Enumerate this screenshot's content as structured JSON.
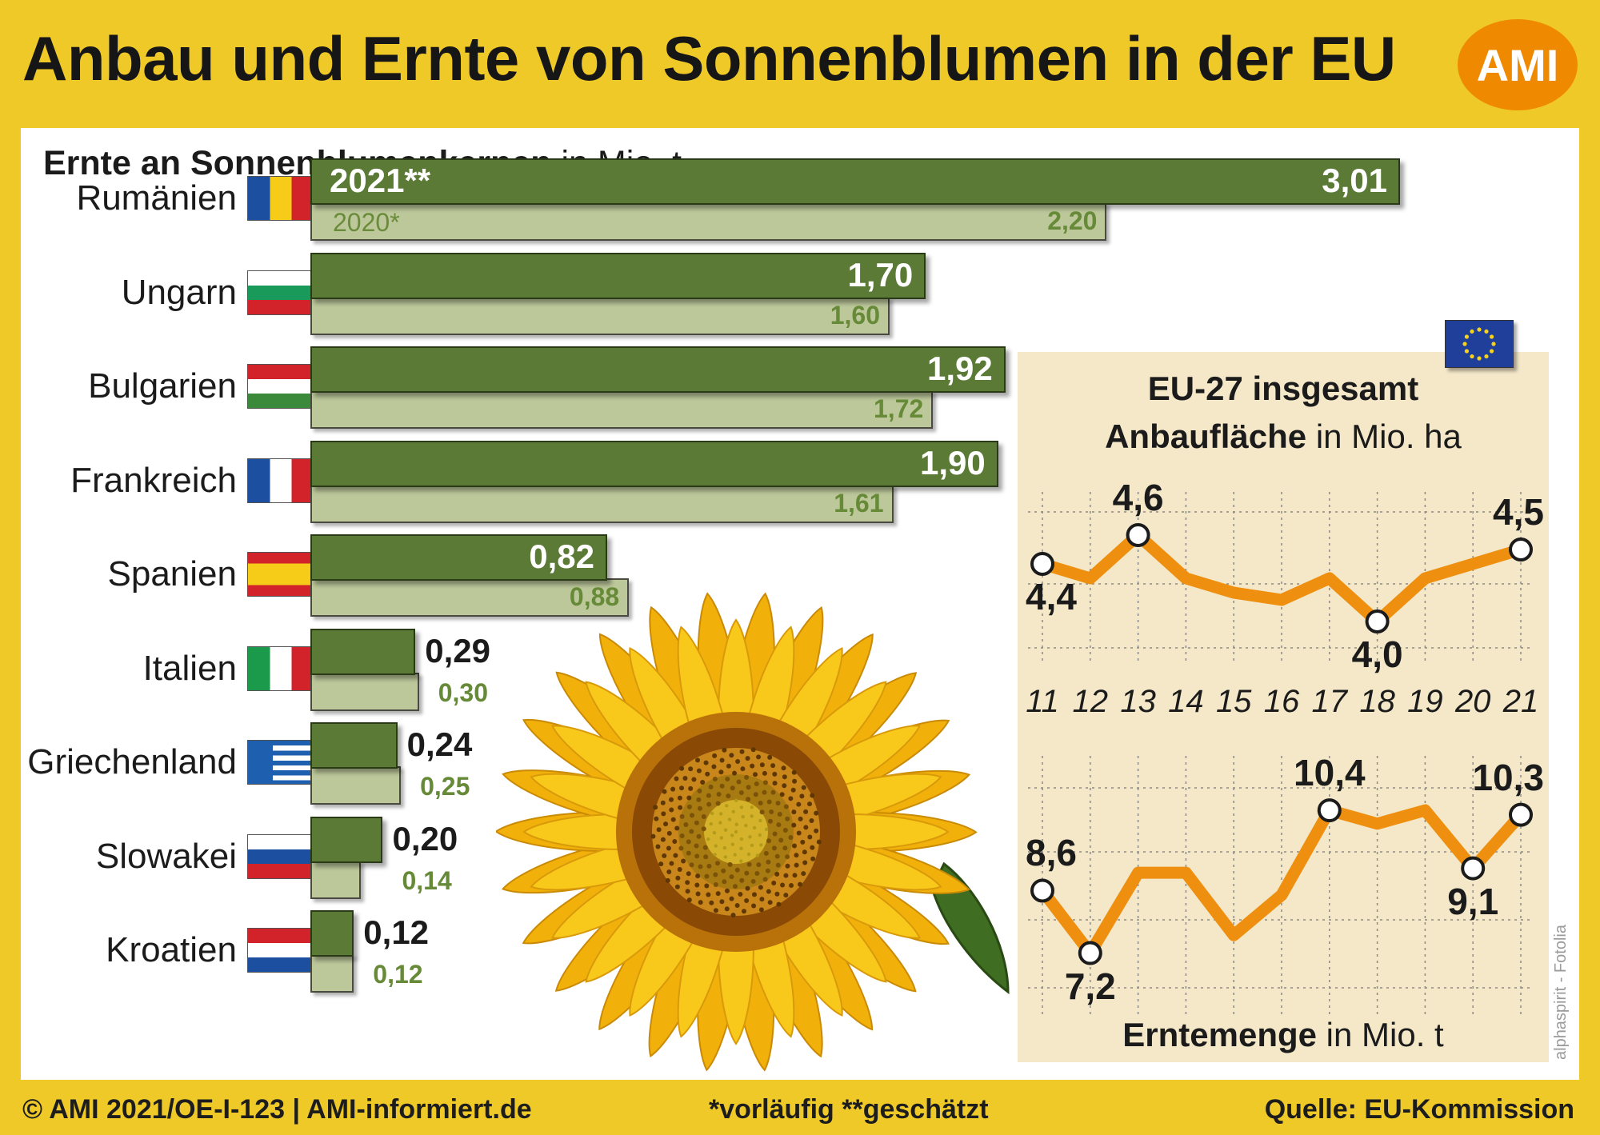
{
  "header": {
    "title": "Anbau und Ernte von Sonnenblumen in der EU",
    "logo_text": "AMI"
  },
  "colors": {
    "background": "#efc928",
    "bar_current": "#5b7a36",
    "bar_previous": "#bcc79a",
    "line": "#ee8f10",
    "inset_background": "#f4e8c9"
  },
  "chart_data": [
    {
      "type": "bar",
      "title": "Ernte an Sonnenblumenkernen",
      "unit": "in Mio. t",
      "orientation": "horizontal",
      "categories": [
        "Rumänien",
        "Ungarn",
        "Bulgarien",
        "Frankreich",
        "Spanien",
        "Italien",
        "Griechenland",
        "Slowakei",
        "Kroatien"
      ],
      "series": [
        {
          "name": "2021**",
          "values": [
            3.01,
            1.7,
            1.92,
            1.9,
            0.82,
            0.29,
            0.24,
            0.2,
            0.12
          ],
          "labels": [
            "3,01",
            "1,70",
            "1,92",
            "1,90",
            "0,82",
            "0,29",
            "0,24",
            "0,20",
            "0,12"
          ]
        },
        {
          "name": "2020*",
          "values": [
            2.2,
            1.6,
            1.72,
            1.61,
            0.88,
            0.3,
            0.25,
            0.14,
            0.12
          ],
          "labels": [
            "2,20",
            "1,60",
            "1,72",
            "1,61",
            "0,88",
            "0,30",
            "0,25",
            "0,14",
            "0,12"
          ]
        }
      ]
    },
    {
      "type": "line",
      "title": "EU-27 insgesamt",
      "bold_label": "Anbaufläche",
      "unit": "in Mio. ha",
      "x": [
        "11",
        "12",
        "13",
        "14",
        "15",
        "16",
        "17",
        "18",
        "19",
        "20",
        "21"
      ],
      "values": [
        4.4,
        4.3,
        4.6,
        4.3,
        4.2,
        4.15,
        4.3,
        4.0,
        4.3,
        4.4,
        4.5
      ],
      "ylim": [
        3.9,
        4.9
      ],
      "labeled_points": [
        {
          "x": "11",
          "label": "4,4",
          "pos": "below"
        },
        {
          "x": "13",
          "label": "4,6",
          "pos": "above"
        },
        {
          "x": "18",
          "label": "4,0",
          "pos": "below"
        },
        {
          "x": "21",
          "label": "4,5",
          "pos": "above"
        }
      ]
    },
    {
      "type": "line",
      "bold_label": "Erntemenge",
      "unit": "in Mio. t",
      "x": [
        "11",
        "12",
        "13",
        "14",
        "15",
        "16",
        "17",
        "18",
        "19",
        "20",
        "21"
      ],
      "values": [
        8.6,
        7.2,
        9.0,
        9.0,
        7.6,
        8.5,
        10.4,
        10.1,
        10.4,
        9.1,
        10.3
      ],
      "ylim": [
        6.6,
        11.8
      ],
      "labeled_points": [
        {
          "x": "11",
          "label": "8,6",
          "pos": "above"
        },
        {
          "x": "12",
          "label": "7,2",
          "pos": "below"
        },
        {
          "x": "17",
          "label": "10,4",
          "pos": "above"
        },
        {
          "x": "20",
          "label": "9,1",
          "pos": "below"
        },
        {
          "x": "21",
          "label": "10,3",
          "pos": "above"
        }
      ]
    }
  ],
  "footer": {
    "left": "© AMI 2021/OE-I-123 | AMI-informiert.de",
    "middle": "*vorläufig **geschätzt",
    "right": "Quelle: EU-Kommission"
  },
  "photo_credit": "alphaspirit - Fotolia"
}
